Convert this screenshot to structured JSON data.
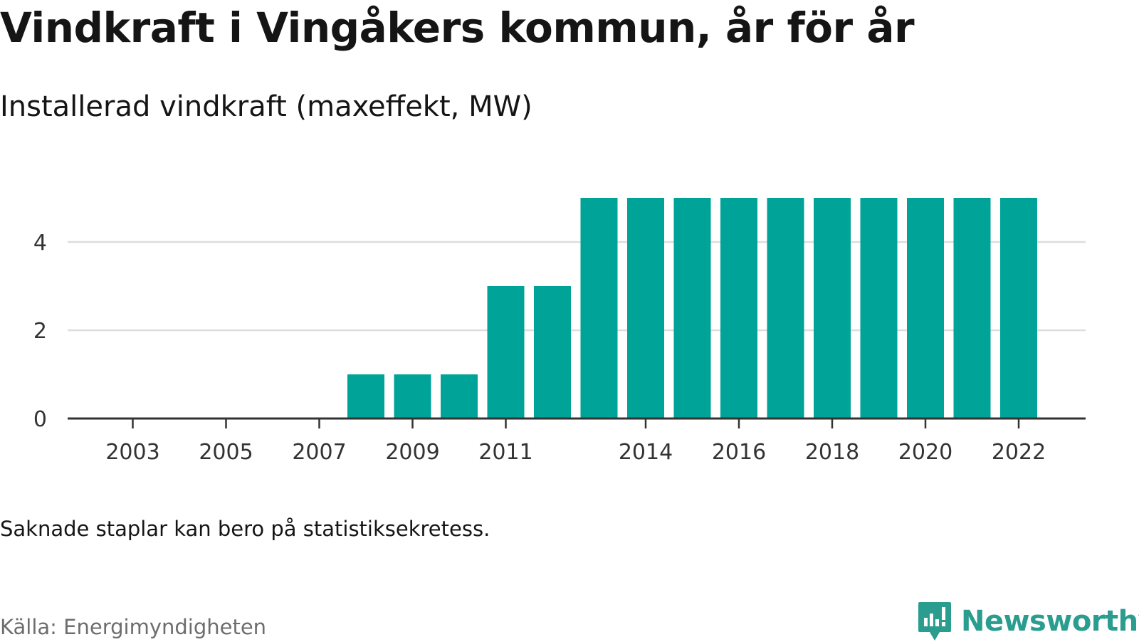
{
  "title": "Vindkraft i Vingåkers kommun, år för år",
  "subtitle": "Installerad vindkraft (maxeffekt, MW)",
  "note": "Saknade staplar kan bero på statistiksekretess.",
  "source": "Källa: Energimyndigheten",
  "logo": {
    "text": "Newsworthy",
    "icon": "newsworthy-logo-icon",
    "color": "#2a9d8f"
  },
  "colors": {
    "bar": "#00a398",
    "grid": "#dddddd",
    "axis": "#333333"
  },
  "chart_data": {
    "type": "bar",
    "title": "Vindkraft i Vingåkers kommun, år för år",
    "subtitle": "Installerad vindkraft (maxeffekt, MW)",
    "xlabel": "",
    "ylabel": "",
    "categories": [
      "2002",
      "2003",
      "2004",
      "2005",
      "2006",
      "2007",
      "2008",
      "2009",
      "2010",
      "2011",
      "2012",
      "2013",
      "2014",
      "2015",
      "2016",
      "2017",
      "2018",
      "2019",
      "2020",
      "2021",
      "2022"
    ],
    "values": [
      0,
      0,
      0,
      0,
      0,
      0,
      1,
      1,
      1,
      3,
      3,
      5,
      5,
      5,
      5,
      5,
      5,
      5,
      5,
      5,
      5
    ],
    "x_tick_labels": [
      "2003",
      "2005",
      "2007",
      "2009",
      "2011",
      "2014",
      "2016",
      "2018",
      "2020",
      "2022"
    ],
    "y_ticks": [
      0,
      2,
      4
    ],
    "ylim": [
      0,
      5
    ],
    "grid": true,
    "legend": "none"
  }
}
